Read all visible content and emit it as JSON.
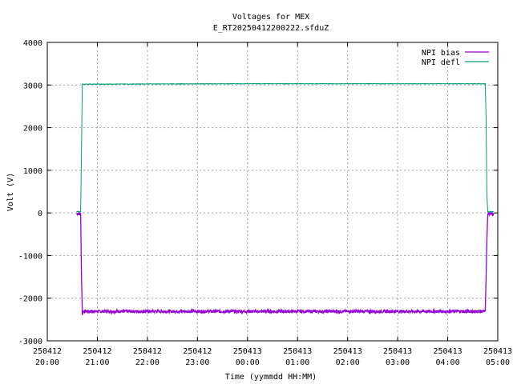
{
  "chart_data": {
    "type": "line",
    "title": "Voltages for MEX",
    "subtitle": "E_RT20250412200222.sfduZ",
    "xlabel": "Time (yymmdd HH:MM)",
    "ylabel": "Volt (V)",
    "ylim": [
      -3000,
      4000
    ],
    "yticks": [
      -3000,
      -2000,
      -1000,
      0,
      1000,
      2000,
      3000,
      4000
    ],
    "xlim": [
      0,
      540
    ],
    "xticks": [
      {
        "x": 0,
        "date": "250412",
        "time": "20:00"
      },
      {
        "x": 60,
        "date": "250412",
        "time": "21:00"
      },
      {
        "x": 120,
        "date": "250412",
        "time": "22:00"
      },
      {
        "x": 180,
        "date": "250412",
        "time": "23:00"
      },
      {
        "x": 240,
        "date": "250413",
        "time": "00:00"
      },
      {
        "x": 300,
        "date": "250413",
        "time": "01:00"
      },
      {
        "x": 360,
        "date": "250413",
        "time": "02:00"
      },
      {
        "x": 420,
        "date": "250413",
        "time": "03:00"
      },
      {
        "x": 480,
        "date": "250413",
        "time": "04:00"
      },
      {
        "x": 540,
        "date": "250413",
        "time": "05:00"
      }
    ],
    "grid": true,
    "legend_position": "top-right",
    "series": [
      {
        "name": "NPI bias",
        "color": "#9400d3",
        "x": [
          35,
          40,
          41,
          42,
          43,
          120,
          240,
          360,
          480,
          525,
          526,
          527,
          528,
          535
        ],
        "y": [
          -20,
          -20,
          -1500,
          -2380,
          -2310,
          -2310,
          -2310,
          -2310,
          -2310,
          -2310,
          -1500,
          -600,
          -20,
          -20
        ],
        "noise": 35
      },
      {
        "name": "NPI defl",
        "color": "#009e73",
        "x": [
          35,
          40,
          41,
          42,
          43,
          120,
          240,
          360,
          480,
          524,
          525,
          526,
          527,
          528,
          535
        ],
        "y": [
          30,
          30,
          1500,
          3020,
          3020,
          3025,
          3030,
          3030,
          3030,
          3030,
          3030,
          2200,
          400,
          30,
          30
        ],
        "noise": 6
      }
    ]
  }
}
